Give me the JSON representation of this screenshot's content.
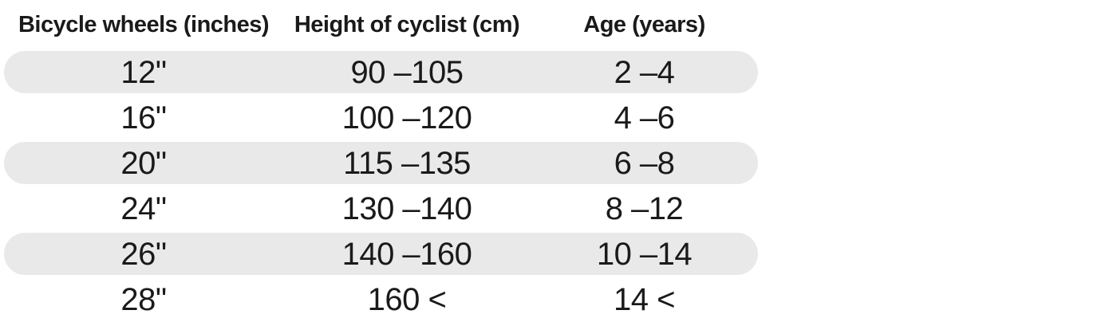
{
  "chart_data": {
    "type": "table",
    "columns": [
      "Bicycle wheels (inches)",
      "Height of cyclist (cm)",
      "Age (years)"
    ],
    "rows": [
      [
        "12\"",
        "90 –105",
        "2 –4"
      ],
      [
        "16\"",
        "100 –120",
        "4 –6"
      ],
      [
        "20\"",
        "115 –135",
        "6 –8"
      ],
      [
        "24\"",
        "130 –140",
        "8 –12"
      ],
      [
        "26\"",
        "140 –160",
        "10 –14"
      ],
      [
        "28\"",
        "160 <",
        "14 <"
      ]
    ],
    "shaded_row_indices": [
      0,
      2,
      4
    ],
    "legend": "none",
    "grid": "off"
  },
  "colors": {
    "row_shade": "#e9e9e9",
    "text": "#1a1a1a",
    "background": "#ffffff"
  }
}
